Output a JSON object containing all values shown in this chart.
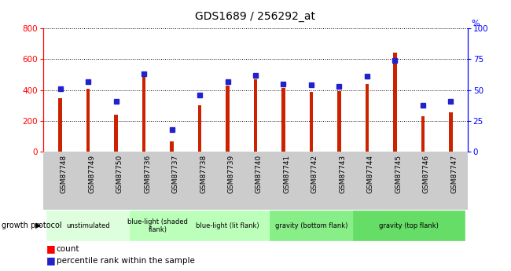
{
  "title": "GDS1689 / 256292_at",
  "samples": [
    "GSM87748",
    "GSM87749",
    "GSM87750",
    "GSM87736",
    "GSM87737",
    "GSM87738",
    "GSM87739",
    "GSM87740",
    "GSM87741",
    "GSM87742",
    "GSM87743",
    "GSM87744",
    "GSM87745",
    "GSM87746",
    "GSM87747"
  ],
  "counts": [
    350,
    410,
    240,
    500,
    65,
    300,
    430,
    470,
    415,
    390,
    395,
    440,
    645,
    230,
    255
  ],
  "percentiles": [
    51,
    57,
    41,
    63,
    18,
    46,
    57,
    62,
    55,
    54,
    53,
    61,
    74,
    38,
    41
  ],
  "bar_color": "#cc2200",
  "dot_color": "#2222cc",
  "bar_width": 0.12,
  "ylim_left": [
    0,
    800
  ],
  "ylim_right": [
    0,
    100
  ],
  "yticks_left": [
    0,
    200,
    400,
    600,
    800
  ],
  "yticks_right": [
    0,
    25,
    50,
    75,
    100
  ],
  "groups": [
    {
      "label": "unstimulated",
      "start": 0,
      "end": 3,
      "color": "#ddffdd"
    },
    {
      "label": "blue-light (shaded\nflank)",
      "start": 3,
      "end": 5,
      "color": "#bbffbb"
    },
    {
      "label": "blue-light (lit flank)",
      "start": 5,
      "end": 8,
      "color": "#bbffbb"
    },
    {
      "label": "gravity (bottom flank)",
      "start": 8,
      "end": 11,
      "color": "#88ee88"
    },
    {
      "label": "gravity (top flank)",
      "start": 11,
      "end": 15,
      "color": "#66dd66"
    }
  ],
  "tick_area_color": "#cccccc",
  "plot_bg": "#ffffff",
  "legend_count_label": "count",
  "legend_pct_label": "percentile rank within the sample",
  "growth_protocol_label": "growth protocol"
}
